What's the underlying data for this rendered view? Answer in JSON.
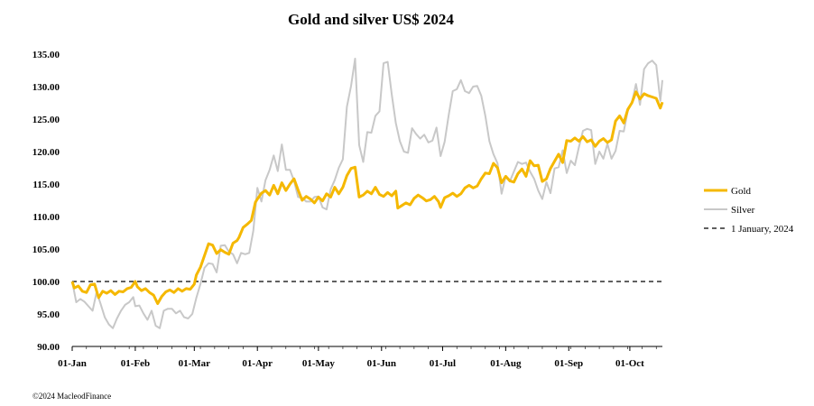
{
  "chart_data": {
    "type": "line",
    "title": "Gold and silver  US$ 2024",
    "xlabel": "",
    "ylabel": "",
    "ylim": [
      90,
      135
    ],
    "yticks": [
      "90.00",
      "95.00",
      "100.00",
      "105.00",
      "110.00",
      "115.00",
      "120.00",
      "125.00",
      "130.00",
      "135.00"
    ],
    "x_day_range": [
      0,
      281
    ],
    "xticks": [
      {
        "day": 0,
        "label": "01-Jan"
      },
      {
        "day": 31,
        "label": "01-Feb"
      },
      {
        "day": 60,
        "label": "01-Mar"
      },
      {
        "day": 91,
        "label": "01-Apr"
      },
      {
        "day": 121,
        "label": "01-May"
      },
      {
        "day": 152,
        "label": "01-Jun"
      },
      {
        "day": 182,
        "label": "01-Jul"
      },
      {
        "day": 213,
        "label": "01-Aug"
      },
      {
        "day": 244,
        "label": "01-Sep"
      },
      {
        "day": 274,
        "label": "01-Oct"
      }
    ],
    "legend_position": "right",
    "series": [
      {
        "name": "Gold",
        "color": "#f5b800",
        "points": [
          [
            0,
            100
          ],
          [
            1,
            99
          ],
          [
            3,
            99.3
          ],
          [
            5,
            98.5
          ],
          [
            7,
            98.3
          ],
          [
            9,
            99.5
          ],
          [
            11,
            99.6
          ],
          [
            13,
            97.5
          ],
          [
            15,
            98.5
          ],
          [
            17,
            98.2
          ],
          [
            19,
            98.6
          ],
          [
            21,
            98
          ],
          [
            23,
            98.5
          ],
          [
            25,
            98.4
          ],
          [
            27,
            98.9
          ],
          [
            29,
            99.1
          ],
          [
            31,
            100
          ],
          [
            32,
            99.2
          ],
          [
            34,
            98.6
          ],
          [
            36,
            98.9
          ],
          [
            38,
            98.3
          ],
          [
            40,
            97.9
          ],
          [
            42,
            96.6
          ],
          [
            44,
            97.7
          ],
          [
            46,
            98.4
          ],
          [
            48,
            98.7
          ],
          [
            50,
            98.3
          ],
          [
            52,
            98.9
          ],
          [
            54,
            98.5
          ],
          [
            56,
            98.9
          ],
          [
            58,
            98.8
          ],
          [
            60,
            99.6
          ],
          [
            61,
            101
          ],
          [
            63,
            102.2
          ],
          [
            65,
            104
          ],
          [
            67,
            105.8
          ],
          [
            69,
            105.6
          ],
          [
            71,
            104.3
          ],
          [
            73,
            104.9
          ],
          [
            75,
            104.5
          ],
          [
            77,
            104.2
          ],
          [
            79,
            105.9
          ],
          [
            81,
            106.3
          ],
          [
            82,
            106.8
          ],
          [
            84,
            108.3
          ],
          [
            86,
            108.8
          ],
          [
            88,
            109.4
          ],
          [
            90,
            112.2
          ],
          [
            91,
            112.7
          ],
          [
            93,
            113.6
          ],
          [
            95,
            114
          ],
          [
            97,
            113.3
          ],
          [
            99,
            114.8
          ],
          [
            101,
            113.5
          ],
          [
            103,
            115.2
          ],
          [
            105,
            114
          ],
          [
            107,
            115
          ],
          [
            109,
            115.8
          ],
          [
            111,
            114.1
          ],
          [
            113,
            112.5
          ],
          [
            115,
            113.1
          ],
          [
            117,
            112.7
          ],
          [
            119,
            112.1
          ],
          [
            121,
            113
          ],
          [
            123,
            112.4
          ],
          [
            125,
            113.5
          ],
          [
            127,
            113
          ],
          [
            129,
            114.5
          ],
          [
            131,
            113.5
          ],
          [
            133,
            114.5
          ],
          [
            135,
            116.3
          ],
          [
            137,
            117.4
          ],
          [
            139,
            117.6
          ],
          [
            141,
            113
          ],
          [
            143,
            113.3
          ],
          [
            145,
            113.9
          ],
          [
            147,
            113.5
          ],
          [
            149,
            114.5
          ],
          [
            151,
            113.4
          ],
          [
            153,
            113.1
          ],
          [
            155,
            113.7
          ],
          [
            157,
            113.2
          ],
          [
            159,
            113.9
          ],
          [
            160,
            111.3
          ],
          [
            162,
            111.7
          ],
          [
            164,
            112.1
          ],
          [
            166,
            111.8
          ],
          [
            168,
            112.8
          ],
          [
            170,
            113.3
          ],
          [
            172,
            112.9
          ],
          [
            174,
            112.4
          ],
          [
            176,
            112.6
          ],
          [
            178,
            113.1
          ],
          [
            180,
            112.3
          ],
          [
            181,
            111.4
          ],
          [
            183,
            112.9
          ],
          [
            185,
            113.2
          ],
          [
            187,
            113.6
          ],
          [
            189,
            113.1
          ],
          [
            191,
            113.5
          ],
          [
            193,
            114.4
          ],
          [
            195,
            114.8
          ],
          [
            197,
            114.4
          ],
          [
            199,
            114.7
          ],
          [
            201,
            115.8
          ],
          [
            203,
            116.7
          ],
          [
            205,
            116.6
          ],
          [
            207,
            118.2
          ],
          [
            209,
            117.5
          ],
          [
            211,
            115.2
          ],
          [
            213,
            116.2
          ],
          [
            215,
            115.5
          ],
          [
            217,
            115.3
          ],
          [
            219,
            116.6
          ],
          [
            221,
            117.3
          ],
          [
            223,
            116.2
          ],
          [
            225,
            118.6
          ],
          [
            227,
            117.8
          ],
          [
            229,
            117.9
          ],
          [
            231,
            115.4
          ],
          [
            233,
            115.8
          ],
          [
            235,
            117.4
          ],
          [
            237,
            118.5
          ],
          [
            239,
            119.6
          ],
          [
            241,
            118.3
          ],
          [
            243,
            121.7
          ],
          [
            245,
            121.6
          ],
          [
            247,
            122.1
          ],
          [
            249,
            121.6
          ],
          [
            251,
            122.3
          ],
          [
            253,
            121.5
          ],
          [
            255,
            121.8
          ],
          [
            257,
            120.8
          ],
          [
            259,
            121.6
          ],
          [
            261,
            122
          ],
          [
            263,
            121.4
          ],
          [
            265,
            121.8
          ],
          [
            267,
            124.7
          ],
          [
            269,
            125.5
          ],
          [
            271,
            124.4
          ],
          [
            273,
            126.5
          ],
          [
            275,
            127.5
          ],
          [
            277,
            129.2
          ],
          [
            279,
            128.1
          ],
          [
            281,
            128.9
          ],
          [
            283,
            128.6
          ],
          [
            285,
            128.4
          ],
          [
            287,
            128.2
          ],
          [
            289,
            126.7
          ],
          [
            290,
            127.6
          ]
        ]
      },
      {
        "name": "Silver",
        "color": "#c8c8c8",
        "points": [
          [
            0,
            100
          ],
          [
            2,
            96.8
          ],
          [
            4,
            97.3
          ],
          [
            6,
            96.9
          ],
          [
            8,
            96.2
          ],
          [
            10,
            95.5
          ],
          [
            12,
            98.4
          ],
          [
            14,
            96.5
          ],
          [
            16,
            94.5
          ],
          [
            18,
            93.4
          ],
          [
            20,
            92.8
          ],
          [
            22,
            94.3
          ],
          [
            24,
            95.5
          ],
          [
            26,
            96.4
          ],
          [
            28,
            96.8
          ],
          [
            30,
            97.6
          ],
          [
            31,
            96.2
          ],
          [
            33,
            96.3
          ],
          [
            35,
            95.1
          ],
          [
            37,
            94.1
          ],
          [
            39,
            95.5
          ],
          [
            41,
            93.2
          ],
          [
            43,
            92.8
          ],
          [
            45,
            95.5
          ],
          [
            47,
            95.8
          ],
          [
            49,
            95.8
          ],
          [
            51,
            95.1
          ],
          [
            53,
            95.5
          ],
          [
            55,
            94.5
          ],
          [
            57,
            94.3
          ],
          [
            59,
            95
          ],
          [
            61,
            97.5
          ],
          [
            63,
            99.6
          ],
          [
            65,
            102.1
          ],
          [
            67,
            102.8
          ],
          [
            69,
            102.7
          ],
          [
            71,
            101.4
          ],
          [
            73,
            105.5
          ],
          [
            75,
            105.6
          ],
          [
            77,
            104.6
          ],
          [
            79,
            104.2
          ],
          [
            81,
            102.8
          ],
          [
            83,
            104.4
          ],
          [
            85,
            104.2
          ],
          [
            87,
            104.4
          ],
          [
            89,
            107.8
          ],
          [
            91,
            114.4
          ],
          [
            93,
            112.3
          ],
          [
            95,
            115.6
          ],
          [
            97,
            117.2
          ],
          [
            99,
            119.4
          ],
          [
            101,
            117
          ],
          [
            103,
            121.1
          ],
          [
            105,
            117.2
          ],
          [
            107,
            117.2
          ],
          [
            109,
            115.5
          ],
          [
            111,
            113
          ],
          [
            113,
            112.9
          ],
          [
            115,
            112.3
          ],
          [
            117,
            112.3
          ],
          [
            119,
            113
          ],
          [
            121,
            113.1
          ],
          [
            123,
            111.4
          ],
          [
            125,
            111.1
          ],
          [
            127,
            114.2
          ],
          [
            129,
            115.6
          ],
          [
            131,
            117.5
          ],
          [
            133,
            118.8
          ],
          [
            135,
            126.9
          ],
          [
            137,
            130.1
          ],
          [
            139,
            134.3
          ],
          [
            141,
            121
          ],
          [
            143,
            118.4
          ],
          [
            145,
            123
          ],
          [
            147,
            122.9
          ],
          [
            149,
            125.5
          ],
          [
            151,
            126.2
          ],
          [
            153,
            133.6
          ],
          [
            155,
            133.8
          ],
          [
            157,
            128.8
          ],
          [
            159,
            124.4
          ],
          [
            161,
            121.6
          ],
          [
            163,
            120
          ],
          [
            165,
            119.8
          ],
          [
            167,
            123.6
          ],
          [
            169,
            122.7
          ],
          [
            171,
            122
          ],
          [
            173,
            122.6
          ],
          [
            175,
            121.4
          ],
          [
            177,
            121.7
          ],
          [
            179,
            123.7
          ],
          [
            181,
            119.3
          ],
          [
            183,
            121.5
          ],
          [
            185,
            125.6
          ],
          [
            187,
            129.3
          ],
          [
            189,
            129.6
          ],
          [
            191,
            131
          ],
          [
            193,
            129.3
          ],
          [
            195,
            129
          ],
          [
            197,
            130
          ],
          [
            199,
            130.1
          ],
          [
            201,
            128.6
          ],
          [
            203,
            125.5
          ],
          [
            205,
            121.6
          ],
          [
            207,
            119.6
          ],
          [
            209,
            118.2
          ],
          [
            211,
            113.5
          ],
          [
            213,
            116.2
          ],
          [
            215,
            115.4
          ],
          [
            217,
            116.9
          ],
          [
            219,
            118.4
          ],
          [
            221,
            118.1
          ],
          [
            223,
            118.3
          ],
          [
            225,
            116.9
          ],
          [
            227,
            115.8
          ],
          [
            229,
            114
          ],
          [
            231,
            112.7
          ],
          [
            233,
            115.3
          ],
          [
            235,
            113.6
          ],
          [
            237,
            117.4
          ],
          [
            239,
            117.6
          ],
          [
            241,
            120.2
          ],
          [
            243,
            116.7
          ],
          [
            245,
            118.6
          ],
          [
            247,
            117.9
          ],
          [
            249,
            120.7
          ],
          [
            251,
            123.2
          ],
          [
            253,
            123.5
          ],
          [
            255,
            123.3
          ],
          [
            257,
            118.1
          ],
          [
            259,
            120
          ],
          [
            261,
            118.9
          ],
          [
            263,
            121.2
          ],
          [
            265,
            118.9
          ],
          [
            267,
            120.1
          ],
          [
            269,
            123.2
          ],
          [
            271,
            123.1
          ],
          [
            273,
            126.3
          ],
          [
            275,
            127.5
          ],
          [
            277,
            130.4
          ],
          [
            279,
            127.2
          ],
          [
            281,
            132.7
          ],
          [
            283,
            133.6
          ],
          [
            285,
            134
          ],
          [
            287,
            133.3
          ],
          [
            289,
            127.8
          ],
          [
            290,
            131
          ]
        ]
      },
      {
        "name": "1 January, 2024",
        "color": "#000000",
        "dashed": true,
        "points": [
          [
            0,
            100
          ],
          [
            281,
            100
          ]
        ]
      }
    ]
  },
  "footer": {
    "copyright": "©2024 MacleodFinance"
  }
}
